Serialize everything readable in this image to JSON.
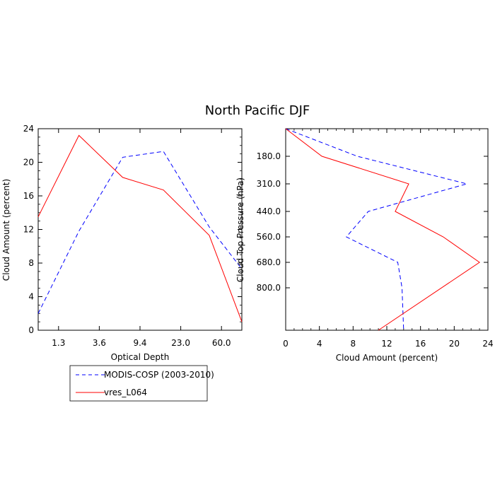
{
  "title": "North Pacific DJF",
  "legend": {
    "placement": "below-left",
    "entries": [
      {
        "label": "MODIS-COSP (2003-2010)",
        "color": "#0000ff",
        "style": "dashed"
      },
      {
        "label": "vres_L064",
        "color": "#ff0000",
        "style": "solid"
      }
    ]
  },
  "chart_data": [
    {
      "type": "line",
      "xlabel": "Optical Depth",
      "ylabel": "Cloud Amount (percent)",
      "ylim": [
        0,
        24
      ],
      "x_categories": [
        "1.3",
        "3.6",
        "9.4",
        "23.0",
        "60.0"
      ],
      "yticks": [
        "0",
        "4",
        "8",
        "12",
        "16",
        "20",
        "24"
      ],
      "grid": false,
      "series": [
        {
          "name": "MODIS-COSP (2003-2010)",
          "color": "#0000ff",
          "style": "dashed",
          "points": [
            [
              0.0,
              2.0
            ],
            [
              4.0,
              11.8
            ],
            [
              8.3,
              20.6
            ],
            [
              12.3,
              21.3
            ],
            [
              16.8,
              12.3
            ],
            [
              20.0,
              7.3
            ]
          ]
        },
        {
          "name": "vres_L064",
          "color": "#ff0000",
          "style": "solid",
          "points": [
            [
              0.0,
              13.5
            ],
            [
              4.0,
              23.2
            ],
            [
              8.3,
              18.2
            ],
            [
              12.3,
              16.7
            ],
            [
              16.8,
              11.3
            ],
            [
              20.0,
              1.0
            ]
          ]
        }
      ]
    },
    {
      "type": "line",
      "xlabel": "Cloud Amount (percent)",
      "ylabel": "Cloud Top Pressure (hPa)",
      "xlim": [
        0,
        24
      ],
      "ylim": [
        50,
        1000
      ],
      "y_inverted": true,
      "xticks": [
        "0",
        "4",
        "8",
        "12",
        "16",
        "20",
        "24"
      ],
      "yticks": [
        "180.0",
        "310.0",
        "440.0",
        "560.0",
        "680.0",
        "800.0"
      ],
      "grid": false,
      "series": [
        {
          "name": "MODIS-COSP (2003-2010)",
          "color": "#0000ff",
          "style": "dashed",
          "points": [
            [
              0.0,
              50
            ],
            [
              8.5,
              180
            ],
            [
              21.5,
              310
            ],
            [
              9.8,
              440
            ],
            [
              7.2,
              560
            ],
            [
              13.3,
              680
            ],
            [
              13.8,
              800
            ],
            [
              14.0,
              1000
            ]
          ]
        },
        {
          "name": "vres_L064",
          "color": "#ff0000",
          "style": "solid",
          "points": [
            [
              0.0,
              50
            ],
            [
              4.3,
              180
            ],
            [
              14.6,
              310
            ],
            [
              13.0,
              440
            ],
            [
              18.7,
              560
            ],
            [
              23.0,
              680
            ],
            [
              11.0,
              1000
            ]
          ]
        }
      ]
    }
  ]
}
